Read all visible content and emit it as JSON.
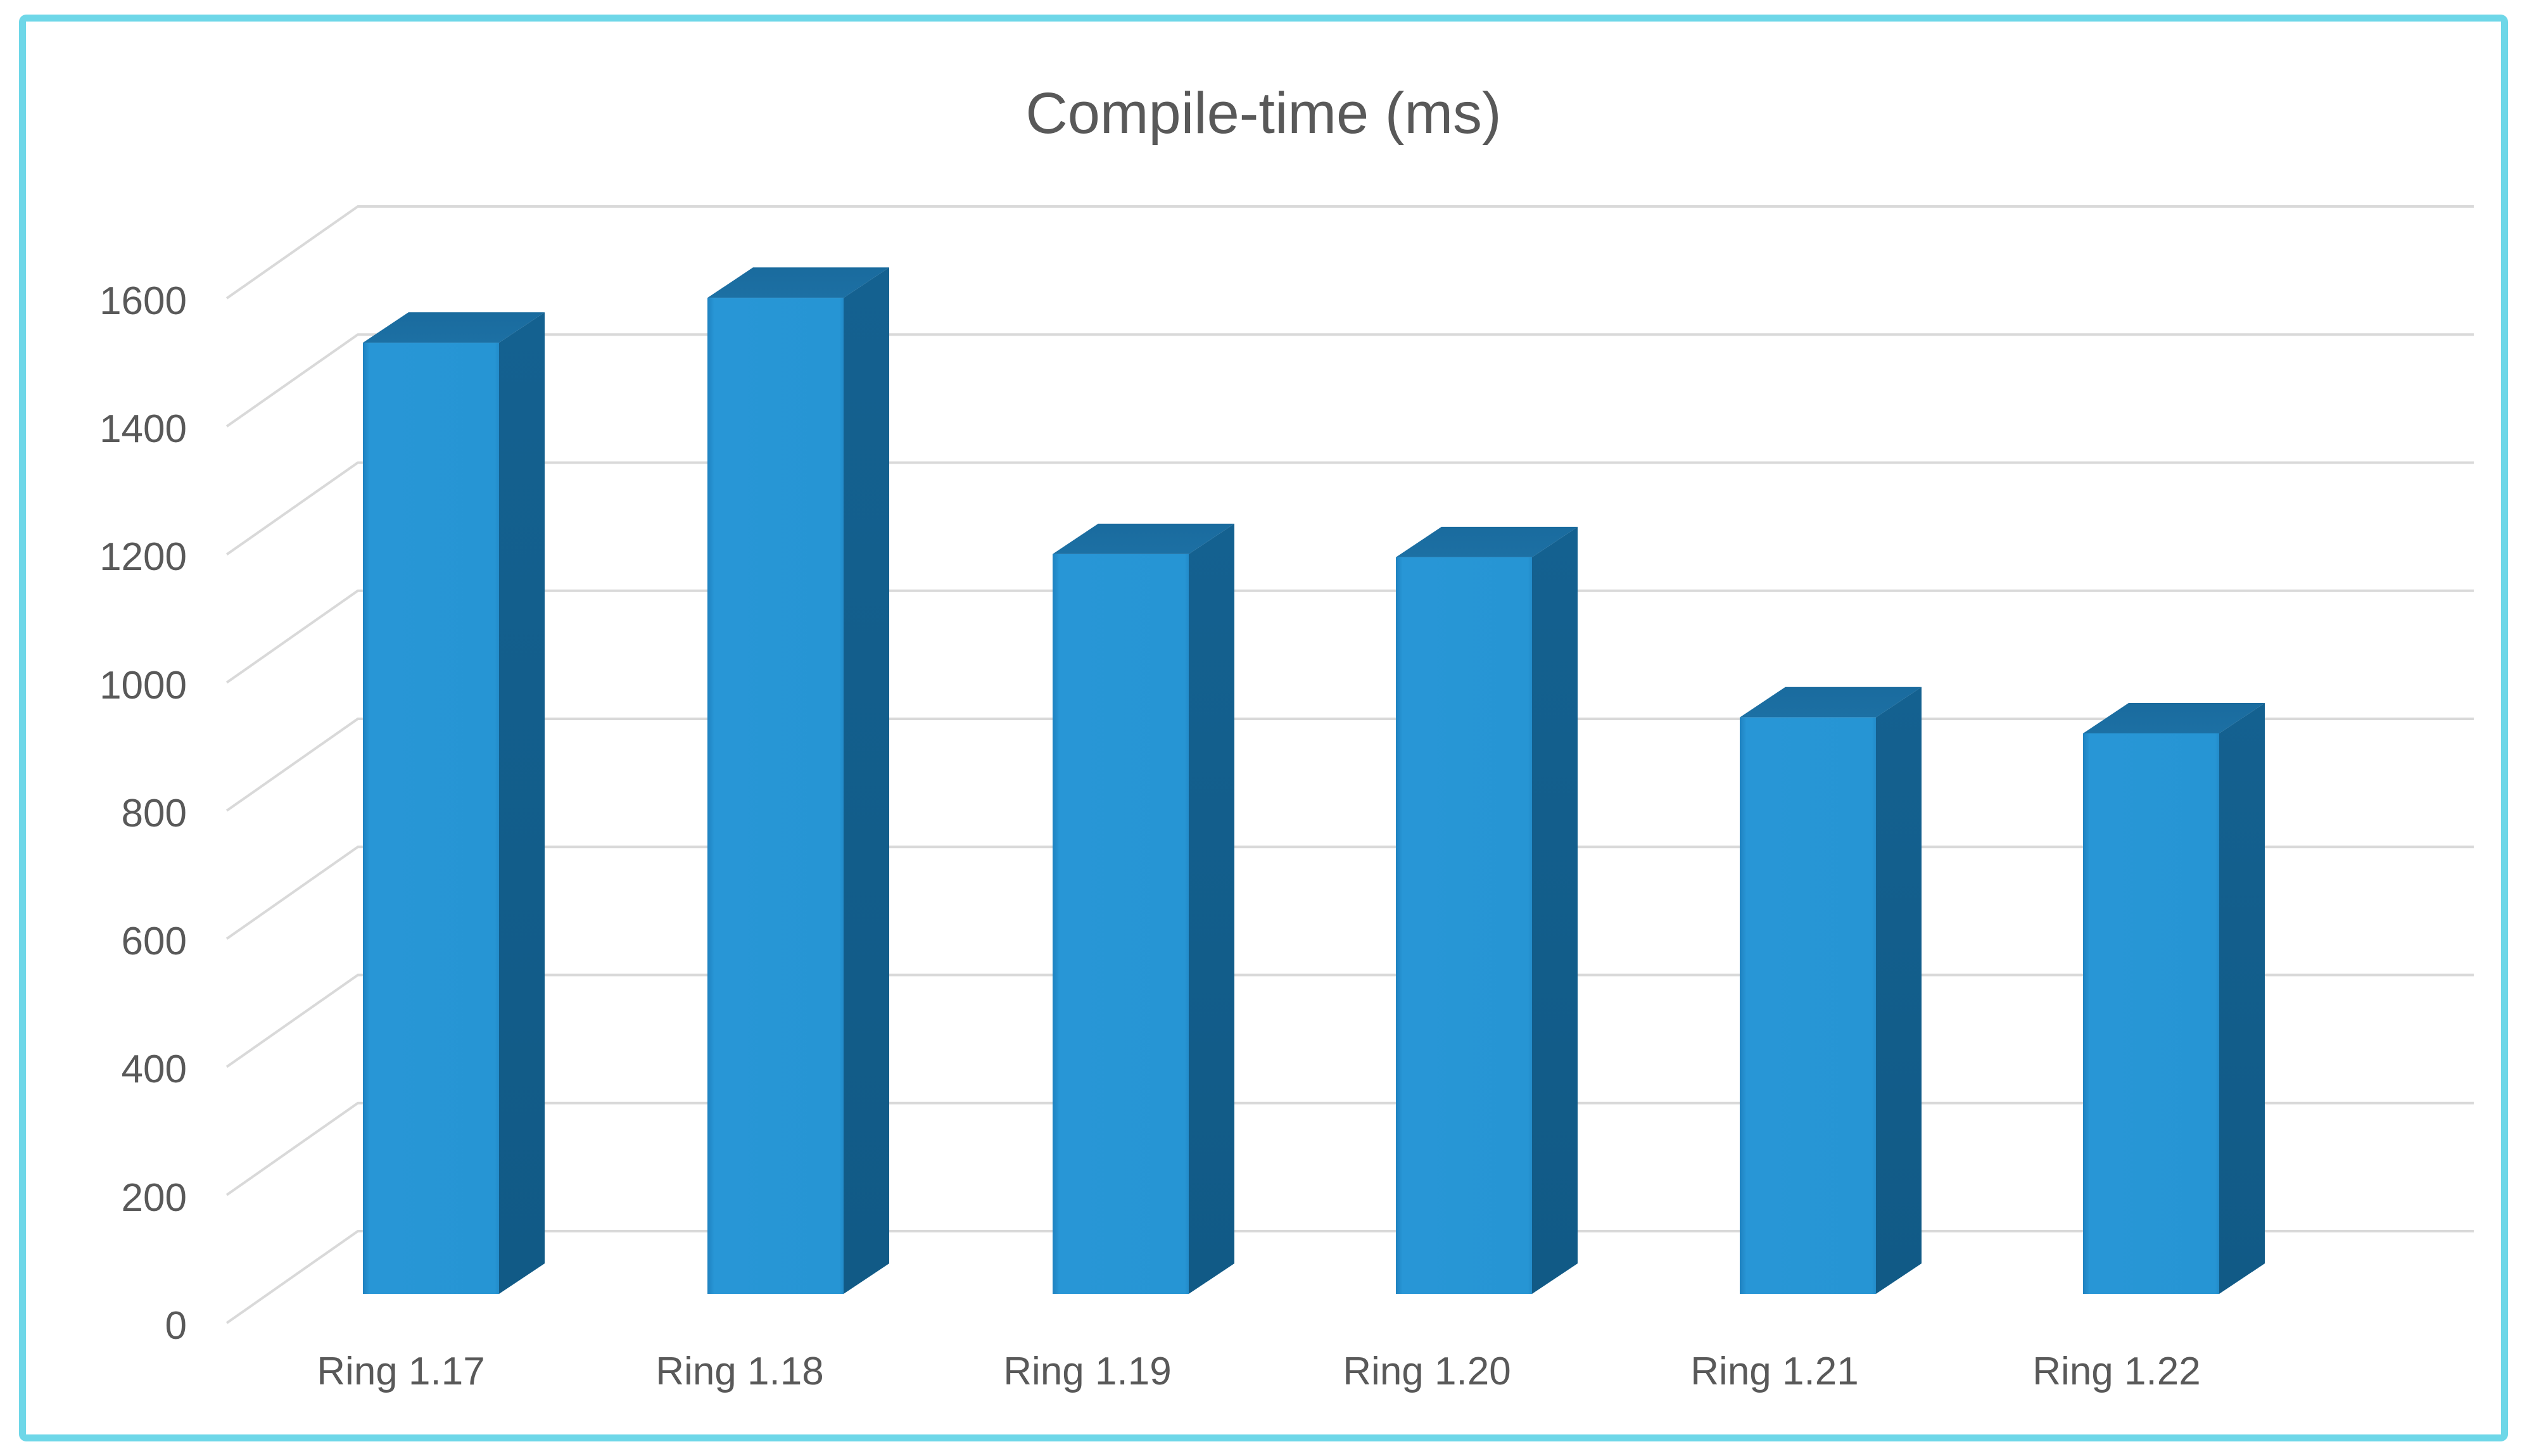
{
  "frame": {
    "border_color": "#6ED7E8",
    "background": "#FFFFFF"
  },
  "chart_data": {
    "type": "bar",
    "style": "3d-column",
    "title": "Compile-time (ms)",
    "categories": [
      "Ring 1.17",
      "Ring 1.18",
      "Ring 1.19",
      "Ring 1.20",
      "Ring 1.21",
      "Ring 1.22"
    ],
    "values": [
      1485,
      1555,
      1155,
      1150,
      900,
      875
    ],
    "xlabel": "",
    "ylabel": "",
    "ylim": [
      0,
      1600
    ],
    "ytick_step": 200,
    "yticks": [
      "1600",
      "1400",
      "1200",
      "1000",
      "800",
      "600",
      "400",
      "200",
      "0"
    ],
    "grid": true,
    "legend": false,
    "colors": {
      "bar_front": "#2795D5",
      "bar_front_edge": "#1F82C0",
      "bar_top": "#1C70A4",
      "bar_side": "#135F8D",
      "gridline": "#D9D9D9",
      "text": "#595959"
    }
  }
}
